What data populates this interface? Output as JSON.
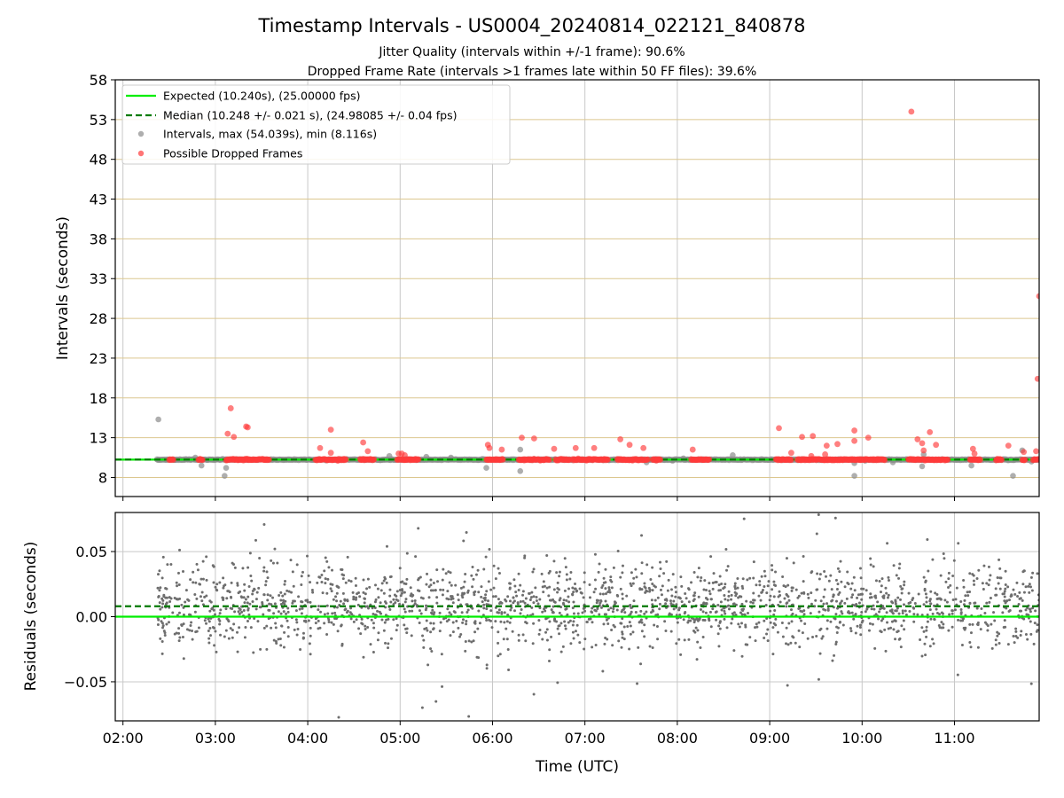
{
  "chart_data": {
    "title": "Timestamp Intervals - US0004_20240814_022121_840878",
    "subtitle_1": "Jitter Quality (intervals within +/-1 frame): 90.6%",
    "subtitle_2": "Dropped Frame Rate (intervals >1 frames late within 50 FF files): 39.6%",
    "xlabel": "Time (UTC)",
    "x_range": [
      "01:55",
      "11:55"
    ],
    "x_ticks": [
      "02:00",
      "03:00",
      "04:00",
      "05:00",
      "06:00",
      "07:00",
      "08:00",
      "09:00",
      "10:00",
      "11:00"
    ],
    "panels": [
      {
        "type": "scatter",
        "ylabel": "Intervals (seconds)",
        "ylim": [
          5.6,
          58
        ],
        "y_ticks": [
          8,
          13,
          18,
          23,
          28,
          33,
          38,
          43,
          48,
          53,
          58
        ],
        "grid": true,
        "legend_position": "top-left",
        "legend": [
          {
            "label": "Expected (10.240s), (25.00000 fps)",
            "style": "solid-line",
            "color": "#00ee00"
          },
          {
            "label": "Median (10.248 +/- 0.021 s), (24.98085 +/- 0.04 fps)",
            "style": "dashed-line",
            "color": "#007a00"
          },
          {
            "label": "Intervals, max (54.039s), min (8.116s)",
            "style": "marker",
            "color": "#8c8c8c"
          },
          {
            "label": "Possible Dropped Frames",
            "style": "marker",
            "color": "#ff3b3b"
          }
        ],
        "expected_value": 10.24,
        "median_value": 10.248,
        "interval_band": {
          "x_start": "02:22",
          "x_end": "11:55",
          "y": 10.24
        },
        "gray_outliers": [
          [
            "02:23",
            15.3
          ],
          [
            "02:34",
            10.2
          ],
          [
            "02:47",
            10.5
          ],
          [
            "02:51",
            9.5
          ],
          [
            "03:06",
            8.2
          ],
          [
            "03:07",
            9.2
          ],
          [
            "04:25",
            10.3
          ],
          [
            "04:53",
            10.7
          ],
          [
            "05:17",
            10.6
          ],
          [
            "05:33",
            10.5
          ],
          [
            "05:56",
            9.2
          ],
          [
            "06:18",
            8.8
          ],
          [
            "06:18",
            11.5
          ],
          [
            "07:40",
            9.9
          ],
          [
            "07:57",
            10.1
          ],
          [
            "08:04",
            10.4
          ],
          [
            "08:36",
            10.8
          ],
          [
            "09:55",
            8.2
          ],
          [
            "09:55",
            9.8
          ],
          [
            "10:02",
            10.1
          ],
          [
            "10:20",
            9.9
          ],
          [
            "10:39",
            9.4
          ],
          [
            "10:40",
            10.9
          ],
          [
            "11:11",
            9.5
          ],
          [
            "11:38",
            8.2
          ],
          [
            "11:44",
            11.4
          ],
          [
            "11:50",
            10.0
          ]
        ],
        "dropped_frames": [
          [
            "03:08",
            13.5
          ],
          [
            "03:10",
            16.7
          ],
          [
            "03:12",
            13.1
          ],
          [
            "03:20",
            14.4
          ],
          [
            "03:21",
            14.3
          ],
          [
            "04:08",
            11.7
          ],
          [
            "04:15",
            14.0
          ],
          [
            "04:15",
            11.1
          ],
          [
            "04:36",
            12.4
          ],
          [
            "04:39",
            11.3
          ],
          [
            "04:59",
            11.0
          ],
          [
            "05:01",
            11.0
          ],
          [
            "05:03",
            10.8
          ],
          [
            "05:57",
            12.1
          ],
          [
            "05:58",
            11.7
          ],
          [
            "06:06",
            11.5
          ],
          [
            "06:19",
            13.0
          ],
          [
            "06:27",
            12.9
          ],
          [
            "06:40",
            11.6
          ],
          [
            "06:54",
            11.7
          ],
          [
            "07:06",
            11.7
          ],
          [
            "07:23",
            12.8
          ],
          [
            "07:29",
            12.1
          ],
          [
            "07:38",
            11.7
          ],
          [
            "08:10",
            11.5
          ],
          [
            "09:06",
            14.2
          ],
          [
            "09:14",
            11.1
          ],
          [
            "09:21",
            13.1
          ],
          [
            "09:28",
            13.2
          ],
          [
            "09:27",
            10.7
          ],
          [
            "09:36",
            10.9
          ],
          [
            "09:37",
            12.0
          ],
          [
            "09:44",
            12.2
          ],
          [
            "09:55",
            13.9
          ],
          [
            "09:55",
            12.6
          ],
          [
            "10:04",
            13.0
          ],
          [
            "10:32",
            54.0
          ],
          [
            "10:36",
            12.8
          ],
          [
            "10:39",
            12.3
          ],
          [
            "10:40",
            11.4
          ],
          [
            "10:44",
            13.7
          ],
          [
            "10:48",
            12.1
          ],
          [
            "11:12",
            11.6
          ],
          [
            "11:13",
            11.0
          ],
          [
            "11:35",
            12.0
          ],
          [
            "11:45",
            11.2
          ],
          [
            "11:53",
            11.3
          ],
          [
            "11:54",
            20.4
          ],
          [
            "11:55",
            30.8
          ]
        ],
        "dropped_frames_cluster_y": 10.24,
        "dropped_frames_clusters": [
          [
            "02:30",
            "02:33"
          ],
          [
            "02:49",
            "02:52"
          ],
          [
            "03:07",
            "03:35"
          ],
          [
            "04:05",
            "04:25"
          ],
          [
            "04:34",
            "04:43"
          ],
          [
            "04:58",
            "05:12"
          ],
          [
            "05:56",
            "06:07"
          ],
          [
            "06:17",
            "06:37"
          ],
          [
            "06:41",
            "06:50"
          ],
          [
            "06:52",
            "07:15"
          ],
          [
            "07:21",
            "07:41"
          ],
          [
            "07:44",
            "07:49"
          ],
          [
            "08:09",
            "08:21"
          ],
          [
            "09:04",
            "09:14"
          ],
          [
            "09:18",
            "10:15"
          ],
          [
            "10:30",
            "10:56"
          ],
          [
            "11:10",
            "11:17"
          ],
          [
            "11:27",
            "11:31"
          ],
          [
            "11:44",
            "11:46"
          ],
          [
            "11:51",
            "11:55"
          ]
        ]
      },
      {
        "type": "scatter",
        "ylabel": "Residuals (seconds)",
        "ylim": [
          -0.08,
          0.08
        ],
        "y_ticks": [
          "0.05",
          "0.00",
          "−0.05"
        ],
        "y_tick_values": [
          0.05,
          0.0,
          -0.05
        ],
        "grid": true,
        "expected_value": 0.0,
        "median_value": 0.008,
        "residual_points_x_range": [
          "02:22",
          "11:55"
        ],
        "residual_points_center": 0.008,
        "residual_points_spread": 0.021,
        "residual_points_count": 2100
      }
    ]
  }
}
